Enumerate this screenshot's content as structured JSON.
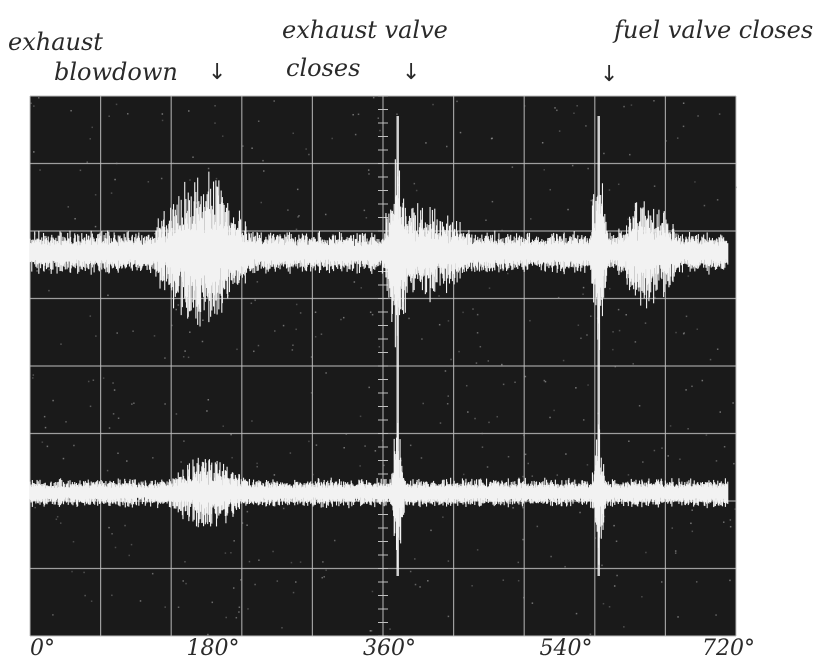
{
  "chart_data": {
    "type": "line",
    "title": "",
    "xlabel": "",
    "ylabel": "",
    "x_unit": "crank angle (degrees)",
    "xlim": [
      0,
      720
    ],
    "x_ticks": [
      {
        "value": 0,
        "label": "0°"
      },
      {
        "value": 180,
        "label": "180°"
      },
      {
        "value": 360,
        "label": "360°"
      },
      {
        "value": 540,
        "label": "540°"
      },
      {
        "value": 720,
        "label": "720°"
      }
    ],
    "grid": true,
    "background": "#1a1a1a",
    "trace_color": "#f2f2f2",
    "grid_color": "#bfbfbf",
    "annotations": [
      {
        "id": "exhaust-blowdown",
        "lines": [
          "exhaust",
          "blowdown"
        ],
        "x": 180
      },
      {
        "id": "exhaust-valve-closes",
        "lines": [
          "exhaust valve",
          "closes"
        ],
        "x": 375
      },
      {
        "id": "fuel-valve-closes",
        "lines": [
          "fuel valve closes"
        ],
        "x": 580
      }
    ],
    "series": [
      {
        "trace": "upper",
        "bursts": [
          {
            "x": 175,
            "amplitude": 0.85,
            "spread": 45
          },
          {
            "x": 375,
            "amplitude": 1.0,
            "spread": 12
          },
          {
            "x": 405,
            "amplitude": 0.5,
            "spread": 45
          },
          {
            "x": 580,
            "amplitude": 0.95,
            "spread": 8
          },
          {
            "x": 630,
            "amplitude": 0.6,
            "spread": 30
          }
        ],
        "baseline_noise": 0.2
      },
      {
        "trace": "lower",
        "bursts": [
          {
            "x": 180,
            "amplitude": 0.5,
            "spread": 40
          },
          {
            "x": 375,
            "amplitude": 1.0,
            "spread": 6
          },
          {
            "x": 580,
            "amplitude": 0.9,
            "spread": 6
          }
        ],
        "baseline_noise": 0.18
      }
    ]
  }
}
